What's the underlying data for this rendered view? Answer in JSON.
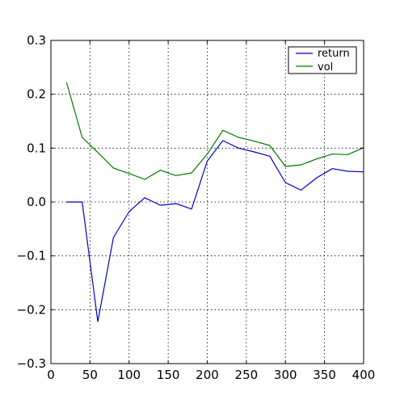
{
  "chart_data": {
    "type": "line",
    "title": "",
    "xlabel": "",
    "ylabel": "",
    "xlim": [
      0,
      400
    ],
    "ylim": [
      -0.3,
      0.3
    ],
    "x_ticks": [
      0,
      50,
      100,
      150,
      200,
      250,
      300,
      350,
      400
    ],
    "y_ticks": [
      -0.3,
      -0.2,
      -0.1,
      0.0,
      0.1,
      0.2,
      0.3
    ],
    "x_tick_labels": [
      "0",
      "50",
      "100",
      "150",
      "200",
      "250",
      "300",
      "350",
      "400"
    ],
    "y_tick_labels": [
      "−0.3",
      "−0.2",
      "−0.1",
      "0.0",
      "0.1",
      "0.2",
      "0.3"
    ],
    "grid": true,
    "grid_style": "dotted",
    "legend_position": "top-right",
    "x": [
      20,
      40,
      60,
      80,
      100,
      120,
      140,
      160,
      180,
      200,
      220,
      240,
      260,
      280,
      300,
      320,
      340,
      360,
      380,
      400
    ],
    "series": [
      {
        "name": "return",
        "color": "#0000cc",
        "values": [
          0.0,
          0.0,
          -0.222,
          -0.066,
          -0.018,
          0.008,
          -0.006,
          -0.003,
          -0.013,
          0.076,
          0.114,
          0.1,
          0.093,
          0.085,
          0.036,
          0.022,
          0.045,
          0.062,
          0.057,
          0.056
        ]
      },
      {
        "name": "vol",
        "color": "#007700",
        "values": [
          0.222,
          0.12,
          0.092,
          0.063,
          0.053,
          0.042,
          0.059,
          0.049,
          0.054,
          0.089,
          0.133,
          0.12,
          0.113,
          0.105,
          0.066,
          0.069,
          0.08,
          0.089,
          0.088,
          0.101
        ]
      }
    ]
  }
}
